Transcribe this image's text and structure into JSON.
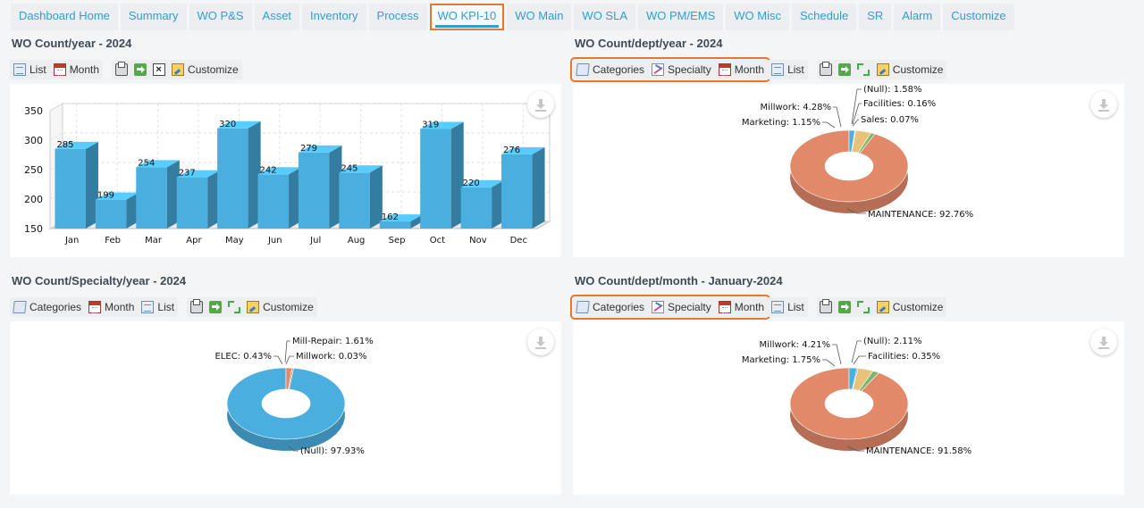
{
  "tabs": [
    {
      "label": "Dashboard Home"
    },
    {
      "label": "Summary"
    },
    {
      "label": "WO P&S"
    },
    {
      "label": "Asset"
    },
    {
      "label": "Inventory"
    },
    {
      "label": "Process"
    },
    {
      "label": "WO KPI-10",
      "active": true
    },
    {
      "label": "WO Main"
    },
    {
      "label": "WO SLA"
    },
    {
      "label": "WO PM/EMS"
    },
    {
      "label": "WO Misc"
    },
    {
      "label": "Schedule"
    },
    {
      "label": "SR"
    },
    {
      "label": "Alarm"
    },
    {
      "label": "Customize"
    }
  ],
  "toolbar_labels": {
    "list": "List",
    "month": "Month",
    "categories": "Categories",
    "specialty": "Specialty",
    "customize": "Customize"
  },
  "colors": {
    "accent": "#2f9fd3",
    "highlight": "#e8772e",
    "bar": "#4aaede",
    "maintenance": "#e2896a",
    "null_slice": "#4aaede",
    "millwork_slice": "#e8c27a",
    "marketing_slice": "#7cb86a"
  },
  "panels": [
    {
      "title": "WO Count/year - 2024"
    },
    {
      "title": "WO Count/dept/year - 2024"
    },
    {
      "title": "WO Count/Specialty/year - 2024"
    },
    {
      "title": "WO Count/dept/month - January-2024"
    }
  ],
  "chart_data": [
    {
      "type": "bar",
      "categories": [
        "Jan",
        "Feb",
        "Mar",
        "Apr",
        "May",
        "Jun",
        "Jul",
        "Aug",
        "Sep",
        "Oct",
        "Nov",
        "Dec"
      ],
      "values": [
        285,
        199,
        254,
        237,
        320,
        242,
        279,
        245,
        162,
        319,
        220,
        276
      ],
      "y_ticks": [
        150,
        200,
        250,
        300,
        350
      ],
      "ylim": [
        150,
        350
      ],
      "grid": true
    },
    {
      "type": "pie",
      "slices": [
        {
          "label": "MAINTENANCE: 92.76%",
          "value": 92.76
        },
        {
          "label": "(Null): 1.58%",
          "value": 1.58
        },
        {
          "label": "Facilities: 0.16%",
          "value": 0.16
        },
        {
          "label": "Sales: 0.07%",
          "value": 0.07
        },
        {
          "label": "Millwork: 4.28%",
          "value": 4.28
        },
        {
          "label": "Marketing: 1.15%",
          "value": 1.15
        }
      ]
    },
    {
      "type": "pie",
      "slices": [
        {
          "label": "(Null): 97.93%",
          "value": 97.93
        },
        {
          "label": "Mill-Repair: 1.61%",
          "value": 1.61
        },
        {
          "label": "Millwork: 0.03%",
          "value": 0.03
        },
        {
          "label": "ELEC: 0.43%",
          "value": 0.43
        }
      ]
    },
    {
      "type": "pie",
      "slices": [
        {
          "label": "MAINTENANCE: 91.58%",
          "value": 91.58
        },
        {
          "label": "(Null): 2.11%",
          "value": 2.11
        },
        {
          "label": "Facilities: 0.35%",
          "value": 0.35
        },
        {
          "label": "Millwork: 4.21%",
          "value": 4.21
        },
        {
          "label": "Marketing: 1.75%",
          "value": 1.75
        }
      ]
    }
  ]
}
